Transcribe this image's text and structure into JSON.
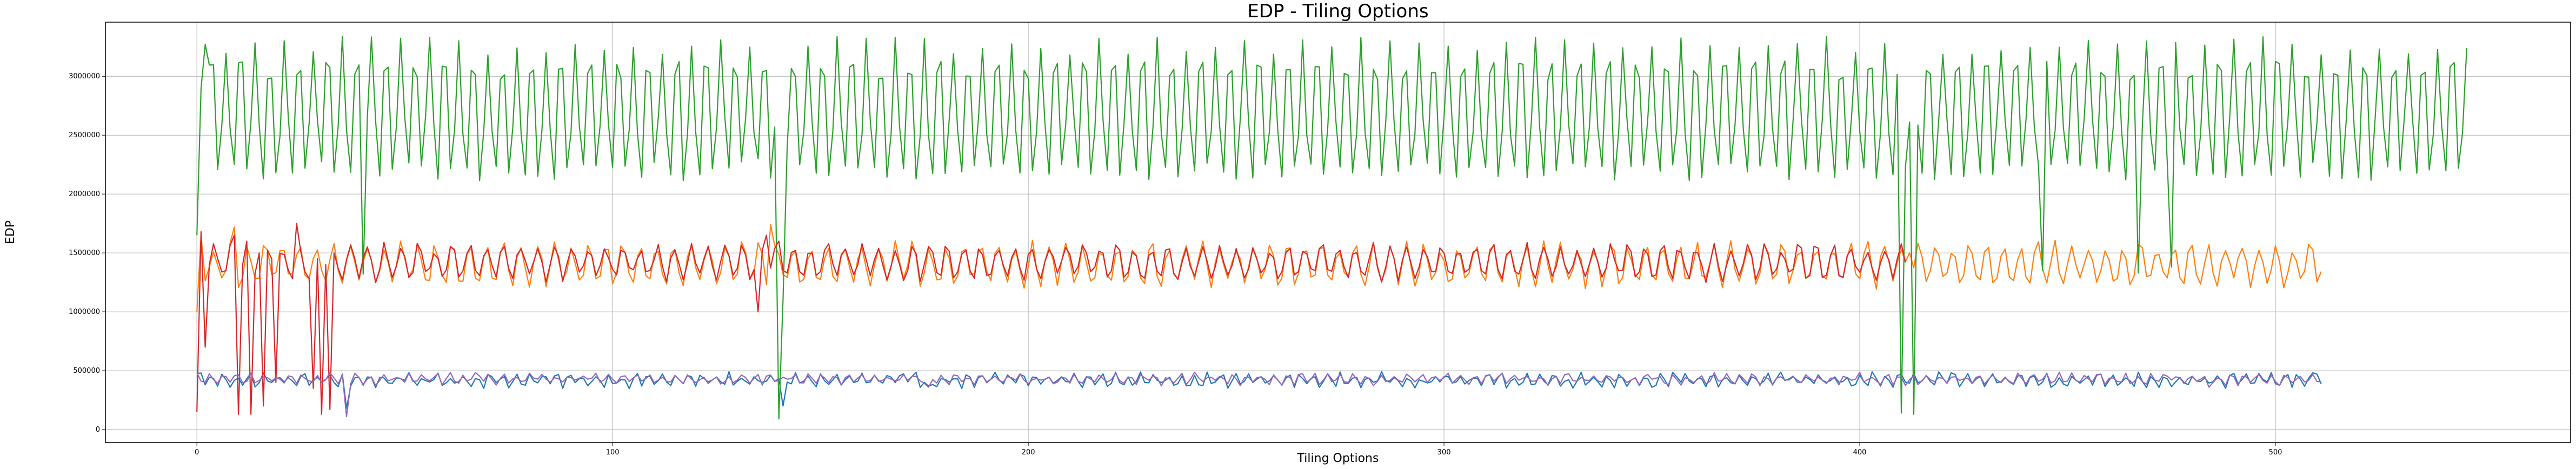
{
  "chart_data": {
    "type": "line",
    "title": "EDP - Tiling Options",
    "xlabel": "Tiling Options",
    "ylabel": "EDP",
    "xlim": [
      -22,
      571
    ],
    "ylim": [
      -110000,
      3460000
    ],
    "xticks": [
      0,
      100,
      200,
      300,
      400,
      500
    ],
    "yticks": [
      0,
      500000,
      1000000,
      1500000,
      2000000,
      2500000,
      3000000
    ],
    "grid": true,
    "series": [
      {
        "color": "#1f77b4",
        "length": 512,
        "base": 420000,
        "amp": 45000,
        "period": 3.2,
        "noise": 30000,
        "spikes": [
          [
            1,
            480000
          ],
          [
            2,
            380000
          ],
          [
            36,
            180000
          ],
          [
            141,
            200000
          ],
          [
            176,
            370000
          ],
          [
            405,
            370000
          ],
          [
            510,
            470000
          ]
        ]
      },
      {
        "color": "#ff7f0e",
        "length": 512,
        "base": 1400000,
        "amp": 160000,
        "period": 4.1,
        "noise": 50000,
        "spikes": [
          [
            0,
            1000000
          ],
          [
            1,
            1650000
          ],
          [
            3,
            1380000
          ],
          [
            9,
            1720000
          ],
          [
            138,
            1740000
          ],
          [
            412,
            1500000
          ]
        ]
      },
      {
        "color": "#2ca02c",
        "length": 547,
        "base": 2700000,
        "amp": 560000,
        "period": 3.5,
        "noise": 80000,
        "spikes": [
          [
            0,
            1650000
          ],
          [
            1,
            2900000
          ],
          [
            2,
            3270000
          ],
          [
            40,
            1320000
          ],
          [
            135,
            2300000
          ],
          [
            137,
            3050000
          ],
          [
            140,
            90000
          ],
          [
            141,
            1100000
          ],
          [
            142,
            2400000
          ],
          [
            410,
            140000
          ],
          [
            413,
            130000
          ],
          [
            444,
            1350000
          ],
          [
            467,
            1330000
          ],
          [
            475,
            1380000
          ],
          [
            546,
            3240000
          ]
        ]
      },
      {
        "color": "#d62728",
        "length": 412,
        "base": 1420000,
        "amp": 130000,
        "period": 4.1,
        "noise": 45000,
        "spikes": [
          [
            0,
            150000
          ],
          [
            1,
            1680000
          ],
          [
            2,
            700000
          ],
          [
            3,
            1400000
          ],
          [
            9,
            1650000
          ],
          [
            10,
            130000
          ],
          [
            12,
            1600000
          ],
          [
            13,
            130000
          ],
          [
            15,
            1500000
          ],
          [
            16,
            200000
          ],
          [
            18,
            1450000
          ],
          [
            19,
            400000
          ],
          [
            24,
            1750000
          ],
          [
            28,
            350000
          ],
          [
            29,
            1450000
          ],
          [
            30,
            130000
          ],
          [
            31,
            1400000
          ],
          [
            32,
            170000
          ],
          [
            33,
            1500000
          ],
          [
            135,
            1000000
          ],
          [
            137,
            1650000
          ],
          [
            140,
            1600000
          ],
          [
            411,
            1420000
          ]
        ]
      },
      {
        "color": "#9467bd",
        "length": 512,
        "base": 430000,
        "amp": 35000,
        "period": 3.2,
        "noise": 25000,
        "spikes": [
          [
            34,
            390000
          ],
          [
            36,
            110000
          ],
          [
            176,
            360000
          ],
          [
            484,
            360000
          ]
        ]
      }
    ]
  }
}
